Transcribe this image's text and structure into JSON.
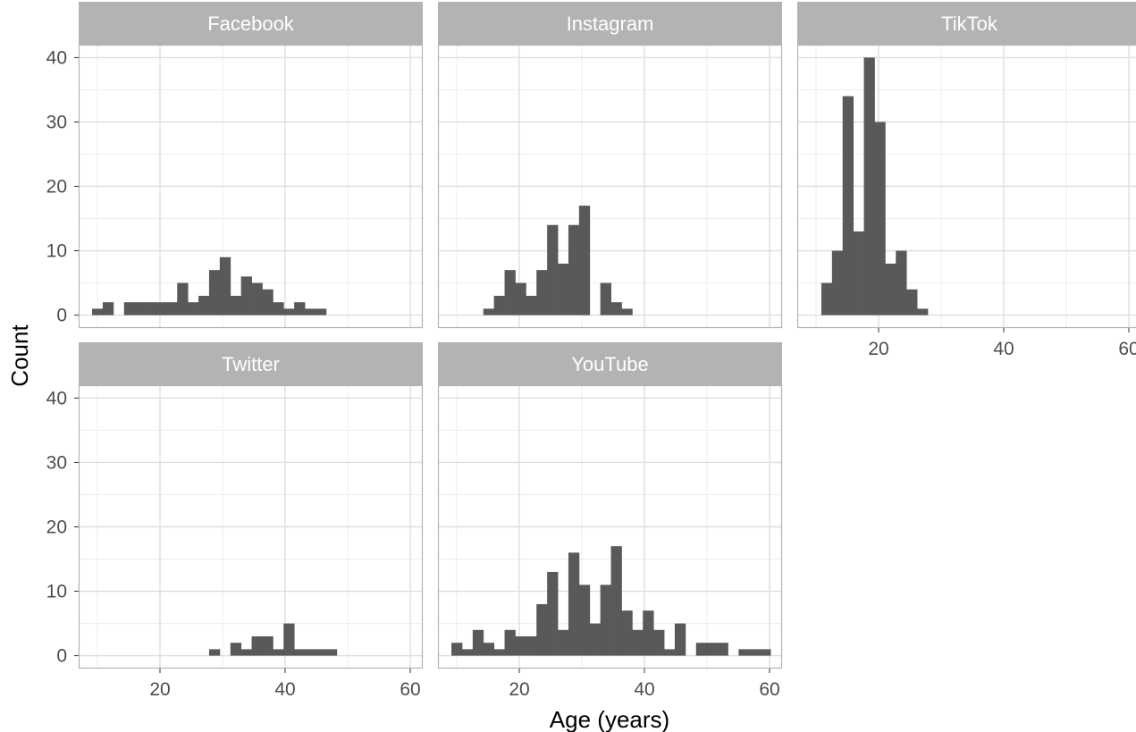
{
  "chart_data": {
    "type": "bar",
    "chart_kind": "faceted histogram",
    "xlabel": "Age (years)",
    "ylabel": "Count",
    "xlim": [
      7,
      62
    ],
    "ylim": [
      -2,
      42
    ],
    "x_ticks": [
      20,
      40,
      60
    ],
    "y_ticks": [
      0,
      10,
      20,
      30,
      40
    ],
    "bin_width": 1.7,
    "grid": true,
    "colors": {
      "bar": "#595959",
      "strip": "#b3b3b3",
      "strip_text": "#ffffff",
      "grid_major": "#dedede",
      "grid_minor": "#ededed",
      "panel_border": "#b3b3b3",
      "tick_text": "#4d4d4d",
      "axis_title": "#000000"
    },
    "facets": [
      {
        "name": "Facebook",
        "bins": [
          {
            "x": 10.0,
            "count": 1
          },
          {
            "x": 11.7,
            "count": 2
          },
          {
            "x": 15.1,
            "count": 2
          },
          {
            "x": 16.8,
            "count": 2
          },
          {
            "x": 18.5,
            "count": 2
          },
          {
            "x": 20.2,
            "count": 2
          },
          {
            "x": 21.9,
            "count": 2
          },
          {
            "x": 23.6,
            "count": 5
          },
          {
            "x": 25.3,
            "count": 2
          },
          {
            "x": 27.0,
            "count": 3
          },
          {
            "x": 28.7,
            "count": 7
          },
          {
            "x": 30.4,
            "count": 9
          },
          {
            "x": 32.1,
            "count": 3
          },
          {
            "x": 33.8,
            "count": 6
          },
          {
            "x": 35.5,
            "count": 5
          },
          {
            "x": 37.2,
            "count": 4
          },
          {
            "x": 38.9,
            "count": 2
          },
          {
            "x": 40.6,
            "count": 1
          },
          {
            "x": 42.3,
            "count": 2
          },
          {
            "x": 44.0,
            "count": 1
          },
          {
            "x": 45.7,
            "count": 1
          }
        ]
      },
      {
        "name": "Instagram",
        "bins": [
          {
            "x": 15.1,
            "count": 1
          },
          {
            "x": 16.8,
            "count": 3
          },
          {
            "x": 18.5,
            "count": 7
          },
          {
            "x": 20.2,
            "count": 5
          },
          {
            "x": 21.9,
            "count": 3
          },
          {
            "x": 23.6,
            "count": 7
          },
          {
            "x": 25.3,
            "count": 14
          },
          {
            "x": 27.0,
            "count": 8
          },
          {
            "x": 28.7,
            "count": 14
          },
          {
            "x": 30.4,
            "count": 17
          },
          {
            "x": 33.8,
            "count": 5
          },
          {
            "x": 35.5,
            "count": 2
          },
          {
            "x": 37.2,
            "count": 1
          }
        ]
      },
      {
        "name": "TikTok",
        "bins": [
          {
            "x": 11.7,
            "count": 5
          },
          {
            "x": 13.4,
            "count": 10
          },
          {
            "x": 15.1,
            "count": 34
          },
          {
            "x": 16.8,
            "count": 13
          },
          {
            "x": 18.5,
            "count": 40
          },
          {
            "x": 20.2,
            "count": 30
          },
          {
            "x": 21.9,
            "count": 8
          },
          {
            "x": 23.6,
            "count": 10
          },
          {
            "x": 25.3,
            "count": 4
          },
          {
            "x": 27.0,
            "count": 1
          }
        ]
      },
      {
        "name": "Twitter",
        "bins": [
          {
            "x": 28.7,
            "count": 1
          },
          {
            "x": 32.1,
            "count": 2
          },
          {
            "x": 33.8,
            "count": 1
          },
          {
            "x": 35.5,
            "count": 3
          },
          {
            "x": 37.2,
            "count": 3
          },
          {
            "x": 38.9,
            "count": 1
          },
          {
            "x": 40.6,
            "count": 5
          },
          {
            "x": 42.3,
            "count": 1
          },
          {
            "x": 44.0,
            "count": 1
          },
          {
            "x": 45.7,
            "count": 1
          },
          {
            "x": 47.4,
            "count": 1
          }
        ]
      },
      {
        "name": "YouTube",
        "bins": [
          {
            "x": 10.0,
            "count": 2
          },
          {
            "x": 11.7,
            "count": 1
          },
          {
            "x": 13.4,
            "count": 4
          },
          {
            "x": 15.1,
            "count": 2
          },
          {
            "x": 16.8,
            "count": 1
          },
          {
            "x": 18.5,
            "count": 4
          },
          {
            "x": 20.2,
            "count": 3
          },
          {
            "x": 21.9,
            "count": 3
          },
          {
            "x": 23.6,
            "count": 8
          },
          {
            "x": 25.3,
            "count": 13
          },
          {
            "x": 27.0,
            "count": 4
          },
          {
            "x": 28.7,
            "count": 16
          },
          {
            "x": 30.4,
            "count": 11
          },
          {
            "x": 32.1,
            "count": 5
          },
          {
            "x": 33.8,
            "count": 11
          },
          {
            "x": 35.5,
            "count": 17
          },
          {
            "x": 37.2,
            "count": 7
          },
          {
            "x": 38.9,
            "count": 4
          },
          {
            "x": 40.6,
            "count": 7
          },
          {
            "x": 42.3,
            "count": 4
          },
          {
            "x": 44.0,
            "count": 1
          },
          {
            "x": 45.7,
            "count": 5
          },
          {
            "x": 49.1,
            "count": 2
          },
          {
            "x": 50.8,
            "count": 2
          },
          {
            "x": 52.5,
            "count": 2
          },
          {
            "x": 55.9,
            "count": 1
          },
          {
            "x": 57.6,
            "count": 1
          },
          {
            "x": 59.3,
            "count": 1
          }
        ]
      }
    ]
  }
}
